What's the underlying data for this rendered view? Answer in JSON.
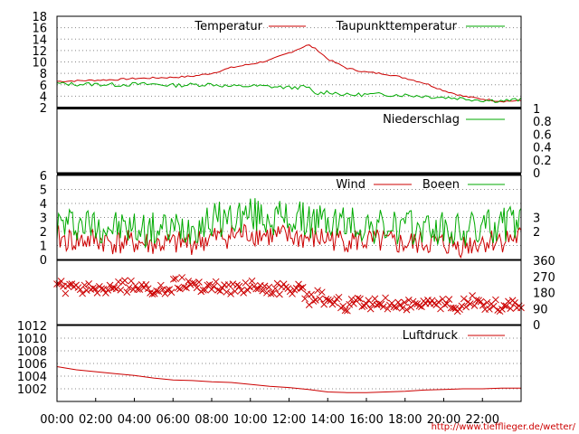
{
  "chart_data": [
    {
      "type": "line",
      "panel": "temperature",
      "ylim": [
        2,
        18
      ],
      "yticks": [
        2,
        4,
        6,
        8,
        10,
        12,
        14,
        16,
        18
      ],
      "grid": true,
      "legend_placement": "top-right",
      "series": [
        {
          "name": "Temperatur",
          "color": "#cc0000",
          "points": [
            [
              0,
              6.6
            ],
            [
              1,
              6.7
            ],
            [
              2,
              6.8
            ],
            [
              3,
              6.9
            ],
            [
              4,
              7.1
            ],
            [
              5,
              7.2
            ],
            [
              6,
              7.3
            ],
            [
              7,
              7.5
            ],
            [
              8,
              8.0
            ],
            [
              9,
              9.0
            ],
            [
              10,
              9.6
            ],
            [
              11,
              10.3
            ],
            [
              12,
              11.6
            ],
            [
              13,
              13.0
            ],
            [
              13.5,
              12.0
            ],
            [
              14,
              10.5
            ],
            [
              15,
              8.9
            ],
            [
              16,
              8.2
            ],
            [
              17,
              7.9
            ],
            [
              18,
              7.2
            ],
            [
              19,
              6.3
            ],
            [
              20,
              5.0
            ],
            [
              21,
              4.0
            ],
            [
              22,
              3.5
            ],
            [
              23,
              3.1
            ],
            [
              24,
              3.2
            ]
          ]
        },
        {
          "name": "Taupunkttemperatur",
          "color": "#00aa00",
          "points": [
            [
              0,
              6.2
            ],
            [
              1,
              6.1
            ],
            [
              2,
              6.1
            ],
            [
              3,
              6.0
            ],
            [
              4,
              6.1
            ],
            [
              5,
              6.1
            ],
            [
              6,
              5.9
            ],
            [
              7,
              6.0
            ],
            [
              8,
              6.1
            ],
            [
              9,
              5.7
            ],
            [
              10,
              5.8
            ],
            [
              11,
              5.7
            ],
            [
              12,
              5.5
            ],
            [
              13,
              5.6
            ],
            [
              13.3,
              4.3
            ],
            [
              14,
              4.8
            ],
            [
              15,
              4.2
            ],
            [
              16,
              4.3
            ],
            [
              17,
              4.3
            ],
            [
              18,
              4.2
            ],
            [
              19,
              4.0
            ],
            [
              20,
              3.8
            ],
            [
              21,
              3.6
            ],
            [
              22,
              3.3
            ],
            [
              23,
              3.2
            ],
            [
              24,
              3.4
            ]
          ]
        }
      ]
    },
    {
      "type": "line",
      "panel": "precipitation",
      "ylim": [
        0,
        1
      ],
      "yticks_right": [
        0,
        0.2,
        0.4,
        0.6,
        0.8,
        1
      ],
      "grid": false,
      "series": [
        {
          "name": "Niederschlag",
          "color": "#00aa00",
          "points": [
            [
              0,
              0
            ],
            [
              24,
              0
            ]
          ]
        }
      ]
    },
    {
      "type": "line",
      "panel": "wind",
      "ylim": [
        0,
        6
      ],
      "yticks": [
        0,
        1,
        2,
        3,
        4,
        5,
        6
      ],
      "yticks_right": [
        2,
        3
      ],
      "grid": true,
      "series": [
        {
          "name": "Wind",
          "color": "#cc0000",
          "points": [
            [
              0,
              1.5
            ],
            [
              1,
              1.3
            ],
            [
              2,
              1.4
            ],
            [
              3,
              1.2
            ],
            [
              4,
              1.2
            ],
            [
              5,
              1.1
            ],
            [
              6,
              1.1
            ],
            [
              7,
              1.2
            ],
            [
              8,
              1.5
            ],
            [
              9,
              1.7
            ],
            [
              10,
              1.9
            ],
            [
              11,
              1.7
            ],
            [
              12,
              1.6
            ],
            [
              13,
              1.5
            ],
            [
              14,
              1.5
            ],
            [
              15,
              1.4
            ],
            [
              16,
              1.3
            ],
            [
              17,
              1.2
            ],
            [
              18,
              1.1
            ],
            [
              19,
              1.2
            ],
            [
              20,
              1.1
            ],
            [
              21,
              1.0
            ],
            [
              22,
              1.3
            ],
            [
              23,
              1.4
            ],
            [
              24,
              1.6
            ]
          ]
        },
        {
          "name": "Boeen",
          "color": "#00aa00",
          "points": [
            [
              0,
              2.5
            ],
            [
              1,
              2.6
            ],
            [
              2,
              2.5
            ],
            [
              3,
              2.3
            ],
            [
              4,
              2.2
            ],
            [
              5,
              2.1
            ],
            [
              6,
              2.2
            ],
            [
              7,
              2.4
            ],
            [
              8,
              2.8
            ],
            [
              9,
              3.0
            ],
            [
              10,
              3.2
            ],
            [
              11,
              3.0
            ],
            [
              12,
              2.9
            ],
            [
              13,
              2.8
            ],
            [
              14,
              2.7
            ],
            [
              15,
              2.6
            ],
            [
              16,
              2.4
            ],
            [
              17,
              2.3
            ],
            [
              18,
              2.2
            ],
            [
              19,
              2.3
            ],
            [
              20,
              2.1
            ],
            [
              21,
              2.0
            ],
            [
              22,
              2.3
            ],
            [
              23,
              2.5
            ],
            [
              24,
              2.7
            ]
          ]
        }
      ]
    },
    {
      "type": "scatter",
      "panel": "wind_direction",
      "ylim": [
        0,
        360
      ],
      "yticks_right": [
        0,
        90,
        180,
        270,
        360
      ],
      "grid": false,
      "series": [
        {
          "color": "#cc0000",
          "points": [
            [
              0,
              220
            ],
            [
              0.5,
              200
            ],
            [
              1,
              190
            ],
            [
              1.5,
              210
            ],
            [
              2,
              200
            ],
            [
              2.5,
              195
            ],
            [
              3,
              205
            ],
            [
              3.5,
              215
            ],
            [
              4,
              210
            ],
            [
              4.5,
              195
            ],
            [
              5,
              205
            ],
            [
              5.5,
              190
            ],
            [
              6,
              220
            ],
            [
              6.5,
              230
            ],
            [
              7,
              225
            ],
            [
              7.5,
              210
            ],
            [
              8,
              215
            ],
            [
              8.5,
              205
            ],
            [
              9,
              200
            ],
            [
              9.5,
              210
            ],
            [
              10,
              215
            ],
            [
              10.5,
              205
            ],
            [
              11,
              210
            ],
            [
              11.5,
              195
            ],
            [
              12,
              200
            ],
            [
              12.5,
              205
            ],
            [
              13,
              140
            ],
            [
              13.5,
              160
            ],
            [
              14,
              135
            ],
            [
              14.5,
              120
            ],
            [
              15,
              110
            ],
            [
              15.5,
              125
            ],
            [
              16,
              100
            ],
            [
              16.5,
              130
            ],
            [
              17,
              120
            ],
            [
              17.5,
              110
            ],
            [
              18,
              100
            ],
            [
              18.5,
              125
            ],
            [
              19,
              115
            ],
            [
              19.5,
              105
            ],
            [
              20,
              120
            ],
            [
              20.5,
              95
            ],
            [
              21,
              110
            ],
            [
              21.5,
              130
            ],
            [
              22,
              105
            ],
            [
              22.5,
              120
            ],
            [
              23,
              100
            ],
            [
              23.5,
              115
            ],
            [
              24,
              90
            ]
          ]
        }
      ]
    },
    {
      "type": "line",
      "panel": "pressure",
      "ylim": [
        1000,
        1012
      ],
      "yticks": [
        1002,
        1004,
        1006,
        1008,
        1010,
        1012
      ],
      "grid": true,
      "legend_placement": "top-right",
      "series": [
        {
          "name": "Luftdruck",
          "color": "#cc0000",
          "points": [
            [
              0,
              1005.5
            ],
            [
              1,
              1005.0
            ],
            [
              2,
              1004.7
            ],
            [
              3,
              1004.4
            ],
            [
              4,
              1004.1
            ],
            [
              5,
              1003.7
            ],
            [
              6,
              1003.4
            ],
            [
              7,
              1003.3
            ],
            [
              8,
              1003.1
            ],
            [
              9,
              1003.0
            ],
            [
              10,
              1002.7
            ],
            [
              11,
              1002.4
            ],
            [
              12,
              1002.2
            ],
            [
              13,
              1001.9
            ],
            [
              14,
              1001.5
            ],
            [
              15,
              1001.4
            ],
            [
              16,
              1001.4
            ],
            [
              17,
              1001.5
            ],
            [
              18,
              1001.6
            ],
            [
              19,
              1001.8
            ],
            [
              20,
              1001.9
            ],
            [
              21,
              1002.0
            ],
            [
              22,
              1002.0
            ],
            [
              23,
              1002.1
            ],
            [
              24,
              1002.1
            ]
          ]
        }
      ]
    }
  ],
  "x_axis": {
    "xlim": [
      0,
      24
    ],
    "tick_labels": [
      "00:00",
      "02:00",
      "04:00",
      "06:00",
      "08:00",
      "10:00",
      "12:00",
      "14:00",
      "16:00",
      "18:00",
      "20:00",
      "22:00"
    ]
  },
  "credit": "http://www.tiefflieger.de/wetter/"
}
